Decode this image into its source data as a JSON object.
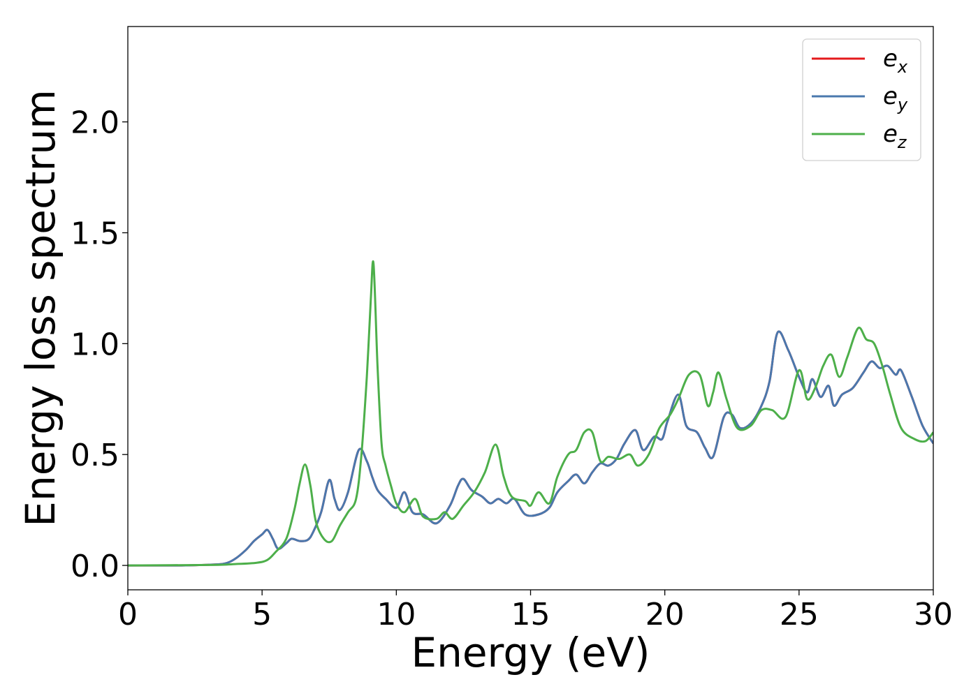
{
  "chart_data": {
    "type": "line",
    "xlabel": "Energy (eV)",
    "ylabel": "Energy loss spectrum",
    "xlim": [
      0,
      30
    ],
    "ylim": [
      -0.11,
      2.43
    ],
    "x_ticks": [
      0,
      5,
      10,
      15,
      20,
      25,
      30
    ],
    "y_ticks": [
      0.0,
      0.5,
      1.0,
      1.5,
      2.0
    ],
    "x_tick_labels": [
      "0",
      "5",
      "10",
      "15",
      "20",
      "25",
      "30"
    ],
    "y_tick_labels": [
      "0.0",
      "0.5",
      "1.0",
      "1.5",
      "2.0"
    ],
    "grid": false,
    "legend_position": "top-right",
    "series": [
      {
        "name": "e_x",
        "label_main": "e",
        "label_sub": "x",
        "color": "#e41a1c",
        "points": [
          [
            0,
            0
          ],
          [
            2,
            0
          ],
          [
            3,
            0.003
          ],
          [
            3.6,
            0.008
          ],
          [
            4.0,
            0.03
          ],
          [
            4.4,
            0.07
          ],
          [
            4.7,
            0.11
          ],
          [
            5.0,
            0.14
          ],
          [
            5.2,
            0.16
          ],
          [
            5.4,
            0.12
          ],
          [
            5.6,
            0.075
          ],
          [
            5.9,
            0.1
          ],
          [
            6.1,
            0.12
          ],
          [
            6.4,
            0.11
          ],
          [
            6.7,
            0.115
          ],
          [
            6.9,
            0.15
          ],
          [
            7.2,
            0.24
          ],
          [
            7.5,
            0.385
          ],
          [
            7.7,
            0.3
          ],
          [
            7.9,
            0.25
          ],
          [
            8.2,
            0.33
          ],
          [
            8.6,
            0.52
          ],
          [
            8.9,
            0.47
          ],
          [
            9.1,
            0.4
          ],
          [
            9.3,
            0.34
          ],
          [
            9.6,
            0.3
          ],
          [
            10.0,
            0.26
          ],
          [
            10.3,
            0.33
          ],
          [
            10.6,
            0.24
          ],
          [
            11.0,
            0.23
          ],
          [
            11.5,
            0.19
          ],
          [
            12.0,
            0.27
          ],
          [
            12.3,
            0.36
          ],
          [
            12.5,
            0.39
          ],
          [
            12.8,
            0.34
          ],
          [
            13.2,
            0.31
          ],
          [
            13.5,
            0.28
          ],
          [
            13.8,
            0.3
          ],
          [
            14.1,
            0.28
          ],
          [
            14.4,
            0.3
          ],
          [
            14.8,
            0.23
          ],
          [
            15.3,
            0.23
          ],
          [
            15.7,
            0.26
          ],
          [
            16.0,
            0.33
          ],
          [
            16.4,
            0.38
          ],
          [
            16.7,
            0.41
          ],
          [
            17.0,
            0.37
          ],
          [
            17.3,
            0.42
          ],
          [
            17.6,
            0.46
          ],
          [
            17.9,
            0.45
          ],
          [
            18.2,
            0.48
          ],
          [
            18.5,
            0.55
          ],
          [
            18.9,
            0.61
          ],
          [
            19.2,
            0.52
          ],
          [
            19.6,
            0.58
          ],
          [
            19.9,
            0.57
          ],
          [
            20.1,
            0.65
          ],
          [
            20.5,
            0.77
          ],
          [
            20.8,
            0.63
          ],
          [
            21.2,
            0.6
          ],
          [
            21.5,
            0.53
          ],
          [
            21.8,
            0.49
          ],
          [
            22.2,
            0.67
          ],
          [
            22.5,
            0.68
          ],
          [
            22.8,
            0.62
          ],
          [
            23.2,
            0.64
          ],
          [
            23.6,
            0.72
          ],
          [
            23.9,
            0.83
          ],
          [
            24.2,
            1.05
          ],
          [
            24.6,
            0.97
          ],
          [
            25.0,
            0.85
          ],
          [
            25.3,
            0.78
          ],
          [
            25.5,
            0.84
          ],
          [
            25.8,
            0.76
          ],
          [
            26.1,
            0.81
          ],
          [
            26.3,
            0.72
          ],
          [
            26.6,
            0.77
          ],
          [
            27.0,
            0.8
          ],
          [
            27.4,
            0.87
          ],
          [
            27.7,
            0.92
          ],
          [
            28.0,
            0.89
          ],
          [
            28.3,
            0.9
          ],
          [
            28.6,
            0.86
          ],
          [
            28.8,
            0.88
          ],
          [
            29.2,
            0.76
          ],
          [
            29.6,
            0.63
          ],
          [
            30.0,
            0.55
          ]
        ]
      },
      {
        "name": "e_y",
        "label_main": "e",
        "label_sub": "y",
        "color": "#4a78ad",
        "points": [
          [
            0,
            0
          ],
          [
            2,
            0
          ],
          [
            3,
            0.003
          ],
          [
            3.6,
            0.008
          ],
          [
            4.0,
            0.03
          ],
          [
            4.4,
            0.07
          ],
          [
            4.7,
            0.11
          ],
          [
            5.0,
            0.14
          ],
          [
            5.2,
            0.16
          ],
          [
            5.4,
            0.12
          ],
          [
            5.6,
            0.075
          ],
          [
            5.9,
            0.1
          ],
          [
            6.1,
            0.12
          ],
          [
            6.4,
            0.11
          ],
          [
            6.7,
            0.115
          ],
          [
            6.9,
            0.15
          ],
          [
            7.2,
            0.24
          ],
          [
            7.5,
            0.385
          ],
          [
            7.7,
            0.3
          ],
          [
            7.9,
            0.25
          ],
          [
            8.2,
            0.33
          ],
          [
            8.6,
            0.52
          ],
          [
            8.9,
            0.47
          ],
          [
            9.1,
            0.4
          ],
          [
            9.3,
            0.34
          ],
          [
            9.6,
            0.3
          ],
          [
            10.0,
            0.26
          ],
          [
            10.3,
            0.33
          ],
          [
            10.6,
            0.24
          ],
          [
            11.0,
            0.23
          ],
          [
            11.5,
            0.19
          ],
          [
            12.0,
            0.27
          ],
          [
            12.3,
            0.36
          ],
          [
            12.5,
            0.39
          ],
          [
            12.8,
            0.34
          ],
          [
            13.2,
            0.31
          ],
          [
            13.5,
            0.28
          ],
          [
            13.8,
            0.3
          ],
          [
            14.1,
            0.28
          ],
          [
            14.4,
            0.3
          ],
          [
            14.8,
            0.23
          ],
          [
            15.3,
            0.23
          ],
          [
            15.7,
            0.26
          ],
          [
            16.0,
            0.33
          ],
          [
            16.4,
            0.38
          ],
          [
            16.7,
            0.41
          ],
          [
            17.0,
            0.37
          ],
          [
            17.3,
            0.42
          ],
          [
            17.6,
            0.46
          ],
          [
            17.9,
            0.45
          ],
          [
            18.2,
            0.48
          ],
          [
            18.5,
            0.55
          ],
          [
            18.9,
            0.61
          ],
          [
            19.2,
            0.52
          ],
          [
            19.6,
            0.58
          ],
          [
            19.9,
            0.57
          ],
          [
            20.1,
            0.65
          ],
          [
            20.5,
            0.77
          ],
          [
            20.8,
            0.63
          ],
          [
            21.2,
            0.6
          ],
          [
            21.5,
            0.53
          ],
          [
            21.8,
            0.49
          ],
          [
            22.2,
            0.67
          ],
          [
            22.5,
            0.68
          ],
          [
            22.8,
            0.62
          ],
          [
            23.2,
            0.64
          ],
          [
            23.6,
            0.72
          ],
          [
            23.9,
            0.83
          ],
          [
            24.2,
            1.05
          ],
          [
            24.6,
            0.97
          ],
          [
            25.0,
            0.85
          ],
          [
            25.3,
            0.78
          ],
          [
            25.5,
            0.84
          ],
          [
            25.8,
            0.76
          ],
          [
            26.1,
            0.81
          ],
          [
            26.3,
            0.72
          ],
          [
            26.6,
            0.77
          ],
          [
            27.0,
            0.8
          ],
          [
            27.4,
            0.87
          ],
          [
            27.7,
            0.92
          ],
          [
            28.0,
            0.89
          ],
          [
            28.3,
            0.9
          ],
          [
            28.6,
            0.86
          ],
          [
            28.8,
            0.88
          ],
          [
            29.2,
            0.76
          ],
          [
            29.6,
            0.63
          ],
          [
            30.0,
            0.55
          ]
        ]
      },
      {
        "name": "e_z",
        "label_main": "e",
        "label_sub": "z",
        "color": "#4daf4a",
        "points": [
          [
            0,
            0
          ],
          [
            3,
            0.002
          ],
          [
            4,
            0.006
          ],
          [
            4.8,
            0.012
          ],
          [
            5.2,
            0.025
          ],
          [
            5.5,
            0.06
          ],
          [
            5.9,
            0.12
          ],
          [
            6.2,
            0.25
          ],
          [
            6.4,
            0.37
          ],
          [
            6.6,
            0.455
          ],
          [
            6.8,
            0.36
          ],
          [
            7.0,
            0.2
          ],
          [
            7.3,
            0.12
          ],
          [
            7.6,
            0.11
          ],
          [
            7.9,
            0.18
          ],
          [
            8.2,
            0.24
          ],
          [
            8.5,
            0.3
          ],
          [
            8.7,
            0.5
          ],
          [
            8.9,
            0.85
          ],
          [
            9.05,
            1.2
          ],
          [
            9.15,
            1.36
          ],
          [
            9.3,
            0.9
          ],
          [
            9.45,
            0.55
          ],
          [
            9.6,
            0.45
          ],
          [
            9.8,
            0.36
          ],
          [
            10.0,
            0.28
          ],
          [
            10.3,
            0.24
          ],
          [
            10.7,
            0.3
          ],
          [
            11.0,
            0.22
          ],
          [
            11.5,
            0.21
          ],
          [
            11.8,
            0.24
          ],
          [
            12.1,
            0.21
          ],
          [
            12.5,
            0.27
          ],
          [
            12.9,
            0.33
          ],
          [
            13.3,
            0.42
          ],
          [
            13.7,
            0.545
          ],
          [
            14.0,
            0.4
          ],
          [
            14.3,
            0.31
          ],
          [
            14.8,
            0.29
          ],
          [
            15.0,
            0.27
          ],
          [
            15.3,
            0.33
          ],
          [
            15.7,
            0.28
          ],
          [
            16.0,
            0.4
          ],
          [
            16.4,
            0.5
          ],
          [
            16.7,
            0.52
          ],
          [
            17.0,
            0.6
          ],
          [
            17.3,
            0.6
          ],
          [
            17.6,
            0.47
          ],
          [
            17.9,
            0.49
          ],
          [
            18.3,
            0.48
          ],
          [
            18.7,
            0.5
          ],
          [
            19.0,
            0.45
          ],
          [
            19.4,
            0.5
          ],
          [
            19.8,
            0.62
          ],
          [
            20.2,
            0.68
          ],
          [
            20.5,
            0.75
          ],
          [
            20.9,
            0.86
          ],
          [
            21.3,
            0.86
          ],
          [
            21.6,
            0.72
          ],
          [
            21.8,
            0.78
          ],
          [
            22.0,
            0.87
          ],
          [
            22.3,
            0.75
          ],
          [
            22.7,
            0.62
          ],
          [
            23.2,
            0.63
          ],
          [
            23.6,
            0.7
          ],
          [
            24.0,
            0.7
          ],
          [
            24.5,
            0.67
          ],
          [
            25.0,
            0.88
          ],
          [
            25.3,
            0.75
          ],
          [
            25.6,
            0.8
          ],
          [
            25.9,
            0.9
          ],
          [
            26.2,
            0.95
          ],
          [
            26.5,
            0.85
          ],
          [
            26.8,
            0.94
          ],
          [
            27.2,
            1.07
          ],
          [
            27.5,
            1.02
          ],
          [
            27.8,
            1.0
          ],
          [
            28.1,
            0.9
          ],
          [
            28.4,
            0.77
          ],
          [
            28.8,
            0.62
          ],
          [
            29.3,
            0.57
          ],
          [
            29.7,
            0.56
          ],
          [
            30.0,
            0.6
          ]
        ]
      }
    ]
  }
}
